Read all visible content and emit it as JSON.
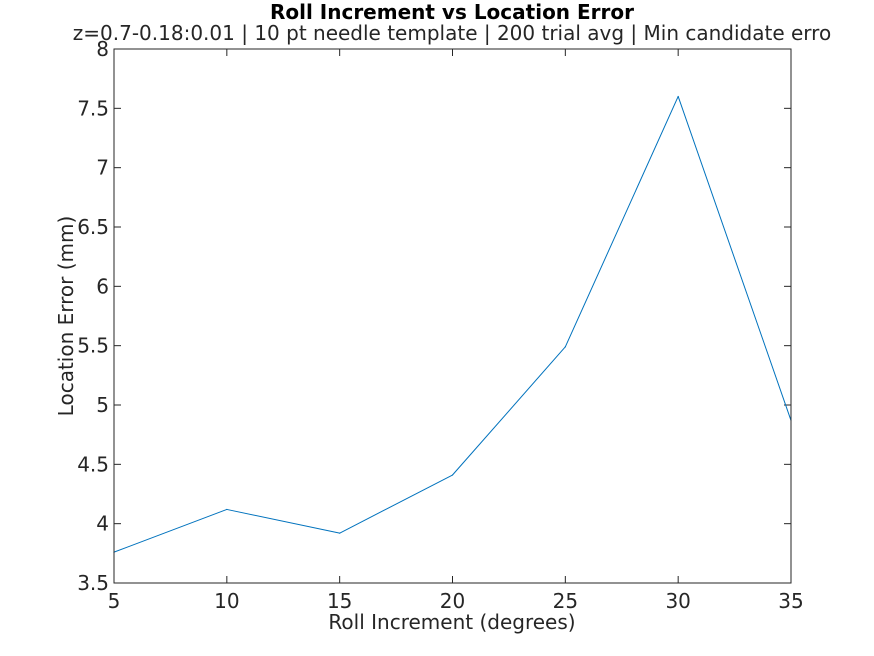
{
  "chart_data": {
    "type": "line",
    "title": "Roll Increment vs Location Error",
    "subtitle": "z=0.7-0.18:0.01 | 10 pt needle template | 200 trial avg | Min candidate erro",
    "xlabel": "Roll Increment (degrees)",
    "ylabel": "Location Error (mm)",
    "xlim": [
      5,
      35
    ],
    "ylim": [
      3.5,
      8
    ],
    "xticks": [
      "5",
      "10",
      "15",
      "20",
      "25",
      "30",
      "35"
    ],
    "yticks": [
      "3.5",
      "4",
      "4.5",
      "5",
      "5.5",
      "6",
      "6.5",
      "7",
      "7.5",
      "8"
    ],
    "grid": false,
    "line_color": "#0072bd",
    "series": [
      {
        "x": [
          5,
          10,
          15,
          20,
          25,
          30,
          35
        ],
        "y": [
          3.76,
          4.12,
          3.92,
          4.41,
          5.49,
          7.6,
          4.87
        ]
      }
    ]
  }
}
